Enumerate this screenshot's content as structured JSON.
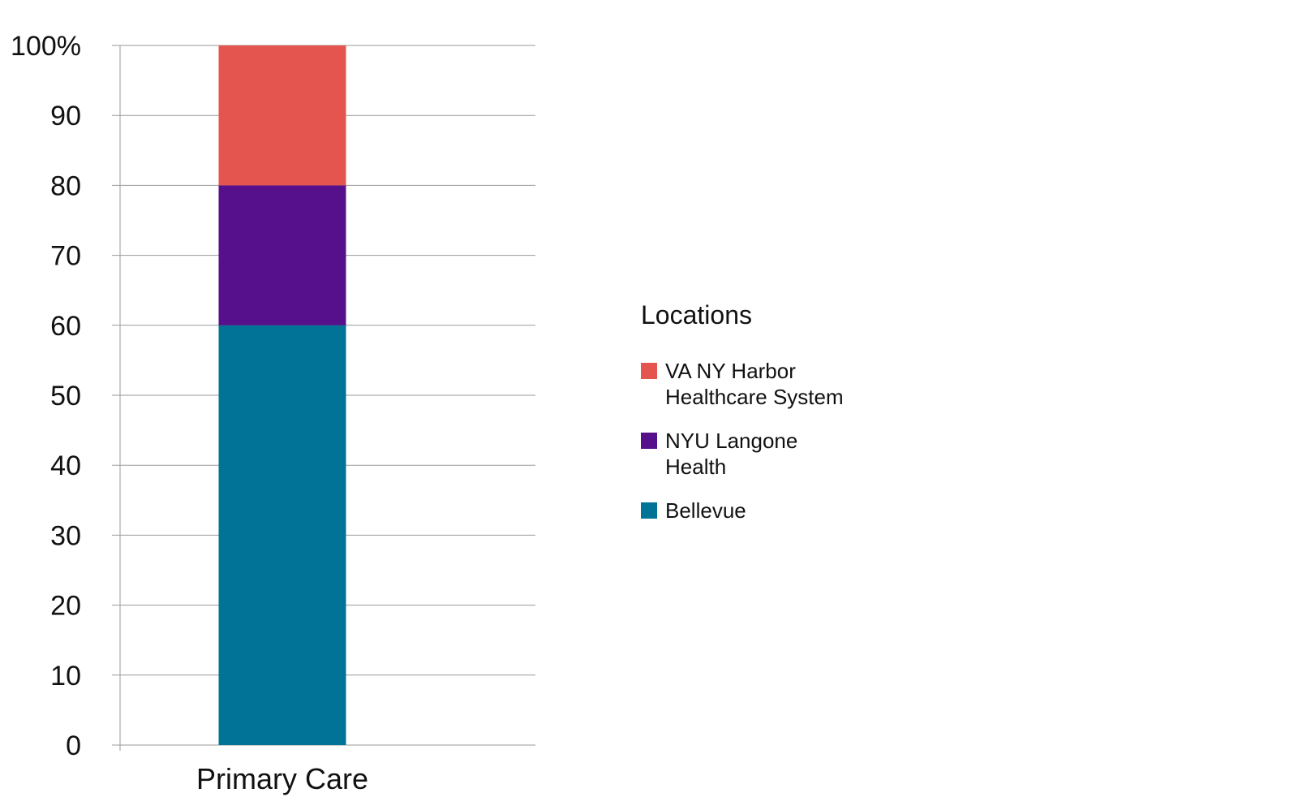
{
  "chart_data": {
    "type": "bar",
    "stacked": true,
    "categories": [
      "Primary Care"
    ],
    "series": [
      {
        "name": "Bellevue",
        "values": [
          60
        ],
        "color": "#007396"
      },
      {
        "name": "NYU Langone Health",
        "values": [
          20
        ],
        "color": "#57108c"
      },
      {
        "name": "VA NY Harbor Healthcare System",
        "values": [
          20
        ],
        "color": "#e5554f"
      }
    ],
    "ylim": [
      0,
      100
    ],
    "yticks": [
      "0",
      "10",
      "20",
      "30",
      "40",
      "50",
      "60",
      "70",
      "80",
      "90",
      "100%"
    ],
    "grid": true,
    "legend_title": "Locations",
    "legend_placement": "right"
  }
}
